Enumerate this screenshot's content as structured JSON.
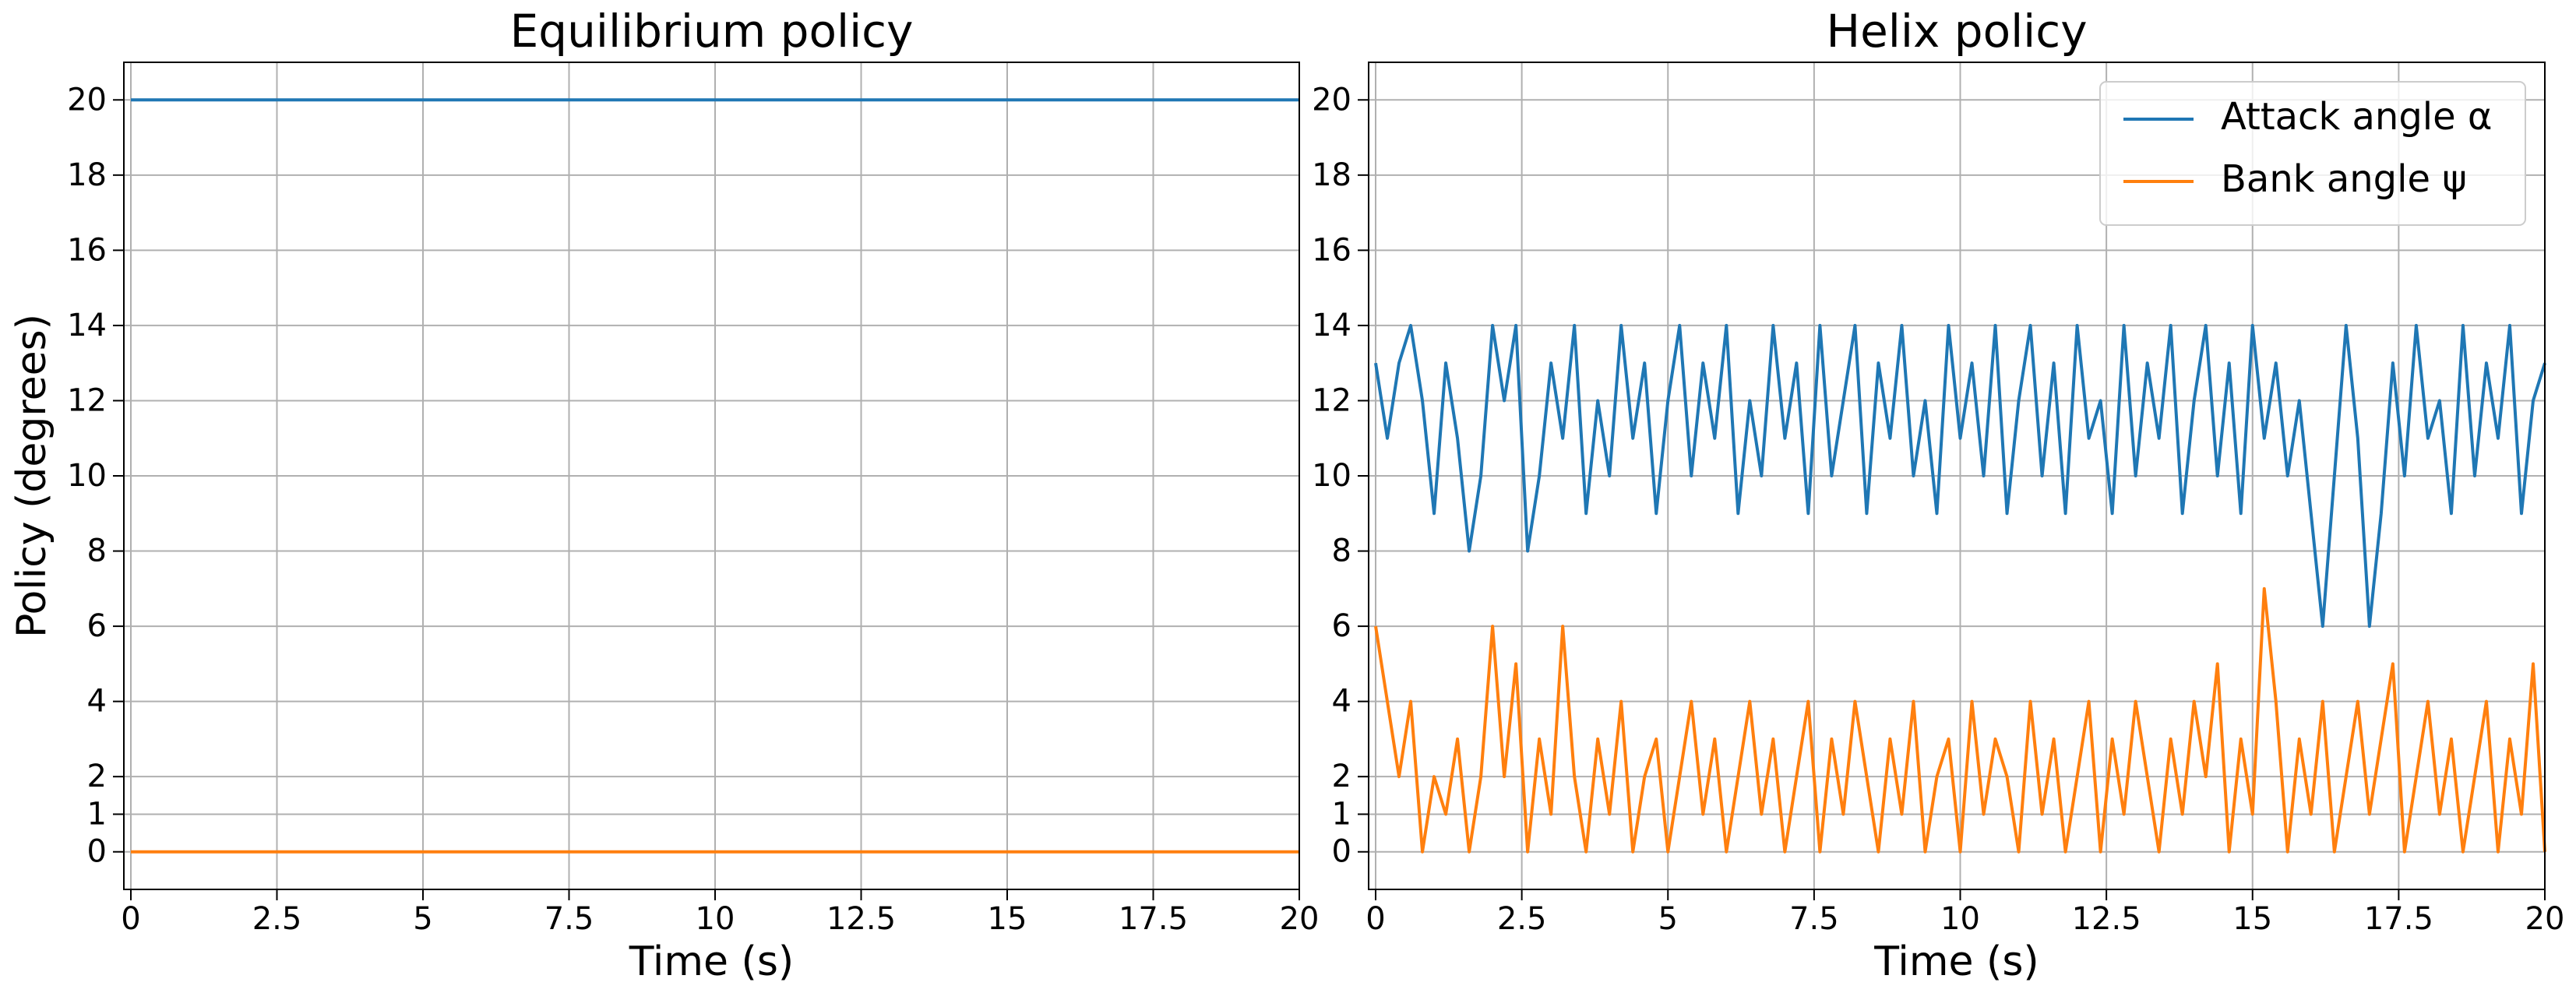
{
  "chart_data": [
    {
      "type": "line",
      "title": "Equilibrium policy",
      "x_label": "Time (s)",
      "y_label": "Policy (degrees)",
      "x": [
        0,
        20
      ],
      "series": [
        {
          "color": "#1f77b4",
          "values": [
            20,
            20
          ]
        },
        {
          "color": "#ff7f0e",
          "values": [
            0,
            0
          ]
        }
      ],
      "xlim": [
        -0.12,
        20
      ],
      "ylim": [
        -1,
        21
      ],
      "xticks": [
        0,
        2.5,
        5,
        7.5,
        10,
        12.5,
        15,
        17.5,
        20
      ],
      "yticks": [
        0,
        1,
        2,
        4,
        6,
        8,
        10,
        12,
        14,
        16,
        18,
        20
      ],
      "grid": true
    },
    {
      "type": "line",
      "title": "Helix policy",
      "x_label": "Time (s)",
      "x": [
        0,
        0.2,
        0.4,
        0.6,
        0.8,
        1,
        1.2,
        1.4,
        1.6,
        1.8,
        2,
        2.2,
        2.4,
        2.6,
        2.8,
        3,
        3.2,
        3.4,
        3.6,
        3.8,
        4,
        4.2,
        4.4,
        4.6,
        4.8,
        5,
        5.2,
        5.4,
        5.6,
        5.8,
        6,
        6.2,
        6.4,
        6.6,
        6.8,
        7,
        7.2,
        7.4,
        7.6,
        7.8,
        8,
        8.2,
        8.4,
        8.6,
        8.8,
        9,
        9.2,
        9.4,
        9.6,
        9.8,
        10,
        10.2,
        10.4,
        10.6,
        10.8,
        11,
        11.2,
        11.4,
        11.6,
        11.8,
        12,
        12.2,
        12.4,
        12.6,
        12.8,
        13,
        13.2,
        13.4,
        13.6,
        13.8,
        14,
        14.2,
        14.4,
        14.6,
        14.8,
        15,
        15.2,
        15.4,
        15.6,
        15.8,
        16,
        16.2,
        16.4,
        16.6,
        16.8,
        17,
        17.2,
        17.4,
        17.6,
        17.8,
        18,
        18.2,
        18.4,
        18.6,
        18.8,
        19,
        19.2,
        19.4,
        19.6,
        19.8,
        20
      ],
      "series": [
        {
          "name": "Attack angle α",
          "color": "#1f77b4",
          "values": [
            13,
            11,
            13,
            14,
            12,
            9,
            13,
            11,
            8,
            10,
            14,
            12,
            14,
            8,
            10,
            13,
            11,
            14,
            9,
            12,
            10,
            14,
            11,
            13,
            9,
            12,
            14,
            10,
            13,
            11,
            14,
            9,
            12,
            10,
            14,
            11,
            13,
            9,
            14,
            10,
            12,
            14,
            9,
            13,
            11,
            14,
            10,
            12,
            9,
            14,
            11,
            13,
            10,
            14,
            9,
            12,
            14,
            10,
            13,
            9,
            14,
            11,
            12,
            9,
            14,
            10,
            13,
            11,
            14,
            9,
            12,
            14,
            10,
            13,
            9,
            14,
            11,
            13,
            10,
            12,
            9,
            6,
            10,
            14,
            11,
            6,
            9,
            13,
            10,
            14,
            11,
            12,
            9,
            14,
            10,
            13,
            11,
            14,
            9,
            12,
            13
          ]
        },
        {
          "name": "Bank angle ψ",
          "color": "#ff7f0e",
          "values": [
            6,
            4,
            2,
            4,
            0,
            2,
            1,
            3,
            0,
            2,
            6,
            2,
            5,
            0,
            3,
            1,
            6,
            2,
            0,
            3,
            1,
            4,
            0,
            2,
            3,
            0,
            2,
            4,
            1,
            3,
            0,
            2,
            4,
            1,
            3,
            0,
            2,
            4,
            0,
            3,
            1,
            4,
            2,
            0,
            3,
            1,
            4,
            0,
            2,
            3,
            0,
            4,
            1,
            3,
            2,
            0,
            4,
            1,
            3,
            0,
            2,
            4,
            0,
            3,
            1,
            4,
            2,
            0,
            3,
            1,
            4,
            2,
            5,
            0,
            3,
            1,
            7,
            4,
            0,
            3,
            1,
            4,
            0,
            2,
            4,
            1,
            3,
            5,
            0,
            2,
            4,
            1,
            3,
            0,
            2,
            4,
            0,
            3,
            1,
            5,
            0
          ]
        }
      ],
      "xlim": [
        -0.12,
        20
      ],
      "ylim": [
        -1,
        21
      ],
      "xticks": [
        0,
        2.5,
        5,
        7.5,
        10,
        12.5,
        15,
        17.5,
        20
      ],
      "yticks": [
        0,
        1,
        2,
        4,
        6,
        8,
        10,
        12,
        14,
        16,
        18,
        20
      ],
      "grid": true,
      "legend": "upper right"
    }
  ]
}
